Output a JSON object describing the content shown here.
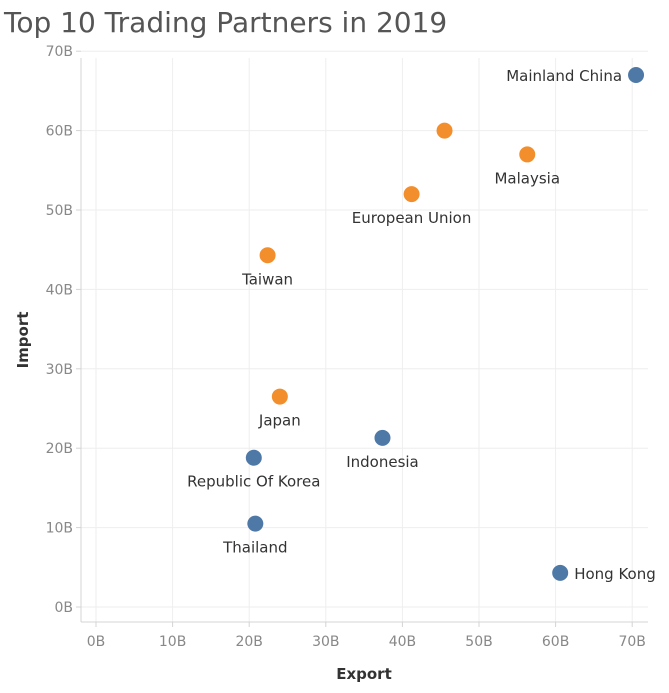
{
  "chart_data": {
    "type": "scatter",
    "title": "Top 10 Trading Partners in 2019",
    "xlabel": "Export",
    "ylabel": "Import",
    "xlim": [
      0,
      72
    ],
    "ylim": [
      0,
      72
    ],
    "x_ticks": [
      "0B",
      "10B",
      "20B",
      "30B",
      "40B",
      "50B",
      "60B",
      "70B"
    ],
    "y_ticks": [
      "0B",
      "10B",
      "20B",
      "30B",
      "40B",
      "50B",
      "60B",
      "70B"
    ],
    "grid": true,
    "colors": {
      "blue": "#4e79a7",
      "orange": "#f28e2b"
    },
    "points": [
      {
        "label": "Mainland China",
        "x": 70.5,
        "y": 67,
        "color": "blue",
        "label_pos": "left"
      },
      {
        "label": "",
        "x": 45.5,
        "y": 60,
        "color": "orange",
        "label_pos": "none"
      },
      {
        "label": "Malaysia",
        "x": 56.3,
        "y": 57,
        "color": "orange",
        "label_pos": "below"
      },
      {
        "label": "European Union",
        "x": 41.2,
        "y": 52,
        "color": "orange",
        "label_pos": "below"
      },
      {
        "label": "Taiwan",
        "x": 22.4,
        "y": 44.3,
        "color": "orange",
        "label_pos": "below"
      },
      {
        "label": "Japan",
        "x": 24.0,
        "y": 26.5,
        "color": "orange",
        "label_pos": "below"
      },
      {
        "label": "Indonesia",
        "x": 37.4,
        "y": 21.3,
        "color": "blue",
        "label_pos": "below"
      },
      {
        "label": "Republic Of Korea",
        "x": 20.6,
        "y": 18.8,
        "color": "blue",
        "label_pos": "below"
      },
      {
        "label": "Thailand",
        "x": 20.8,
        "y": 10.5,
        "color": "blue",
        "label_pos": "below"
      },
      {
        "label": "Hong Kong",
        "x": 60.6,
        "y": 4.3,
        "color": "blue",
        "label_pos": "right"
      }
    ]
  }
}
